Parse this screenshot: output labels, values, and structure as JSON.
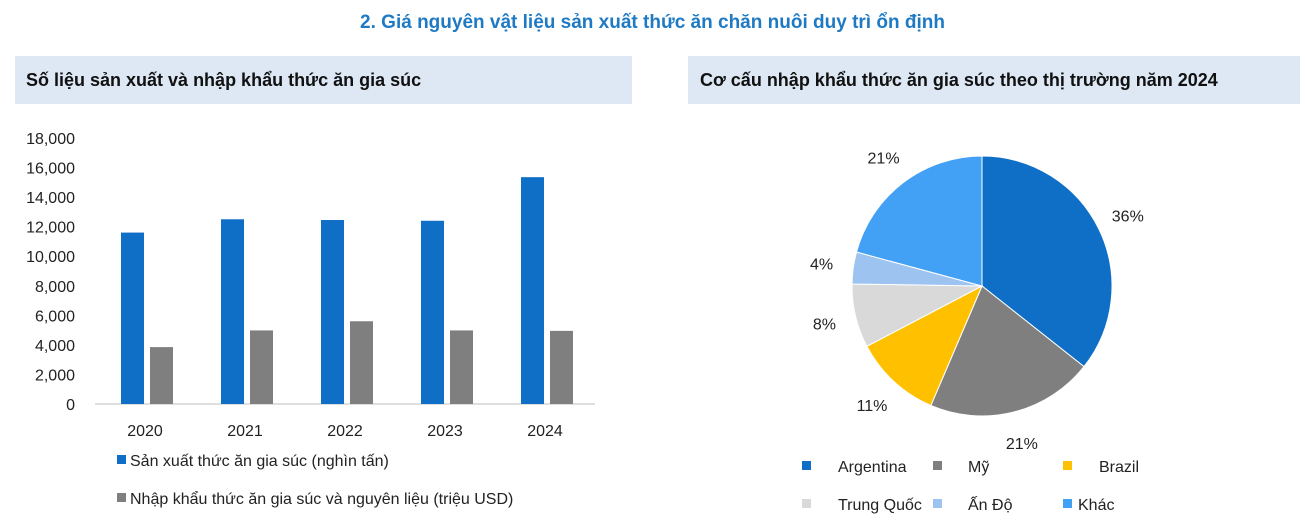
{
  "page_title": "2.   Giá nguyên vật liệu sản xuất thức ăn chăn nuôi duy trì ổn định",
  "chart_data": [
    {
      "type": "bar",
      "title": "Số liệu sản xuất và nhập khẩu thức ăn gia súc",
      "categories": [
        "2020",
        "2021",
        "2022",
        "2023",
        "2024"
      ],
      "series": [
        {
          "name": "Sản xuất thức ăn gia súc (nghìn tấn)",
          "values": [
            11600,
            12500,
            12450,
            12400,
            15350
          ],
          "color": "#0f6fc6"
        },
        {
          "name": "Nhập khẩu thức ăn gia súc và nguyên liệu (triệu USD)",
          "values": [
            3850,
            4980,
            5600,
            4980,
            4950
          ],
          "color": "#7f7f7f"
        }
      ],
      "ylim": [
        0,
        18000
      ],
      "yticks": [
        "0",
        "2,000",
        "4,000",
        "6,000",
        "8,000",
        "10,000",
        "12,000",
        "14,000",
        "16,000",
        "18,000"
      ],
      "grid": false,
      "legend": "bottom"
    },
    {
      "type": "pie",
      "title": "Cơ cấu nhập khẩu thức ăn gia súc theo thị trường năm 2024",
      "slices": [
        {
          "label": "Argentina",
          "value": 36,
          "text": "36%",
          "color": "#0f6fc6"
        },
        {
          "label": "Mỹ",
          "value": 21,
          "text": "21%",
          "color": "#7f7f7f"
        },
        {
          "label": "Brazil",
          "value": 11,
          "text": "11%",
          "color": "#ffc000"
        },
        {
          "label": "Trung Quốc",
          "value": 8,
          "text": "8%",
          "color": "#d9d9d9"
        },
        {
          "label": "Ấn Độ",
          "value": 4,
          "text": "4%",
          "color": "#9dc3f0"
        },
        {
          "label": "Khác",
          "value": 21,
          "text": "21%",
          "color": "#42a0f5"
        }
      ],
      "legend": "bottom"
    }
  ]
}
